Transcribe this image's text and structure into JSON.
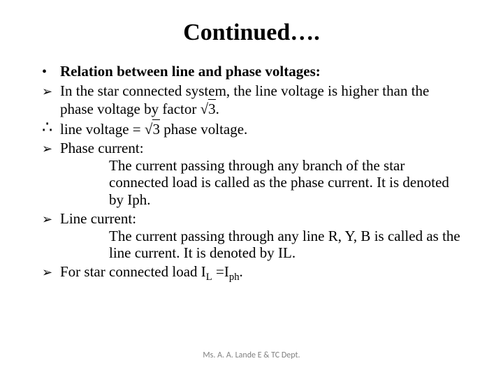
{
  "slide": {
    "title": "Continued….",
    "title_fontsize": 34,
    "body_fontsize": 21,
    "background_color": "#ffffff",
    "text_color": "#000000",
    "footer_color": "#808080",
    "bullets": {
      "b1_label": "Relation between line and phase voltages:",
      "b2_text": "In the star connected system, the line voltage is higher than the phase voltage by factor ",
      "b2_sqrt": "3",
      "b2_tail": ".",
      "therefore_pre": "line voltage = ",
      "therefore_sqrt": "3",
      "therefore_post": " phase voltage.",
      "b3_head": "Phase current:",
      "b3_body": "The current passing through any branch of the star connected load is called as the phase current.  It is denoted by Iph.",
      "b4_head": "Line current:",
      "b4_body": "The current passing through any line R, Y, B is called as the line current. It is denoted by IL.",
      "b5_pre": "For star connected load I",
      "b5_sub1": "L",
      "b5_mid": " =I",
      "b5_sub2": "ph",
      "b5_tail": "."
    },
    "footer": "Ms. A. A. Lande E & TC Dept."
  }
}
